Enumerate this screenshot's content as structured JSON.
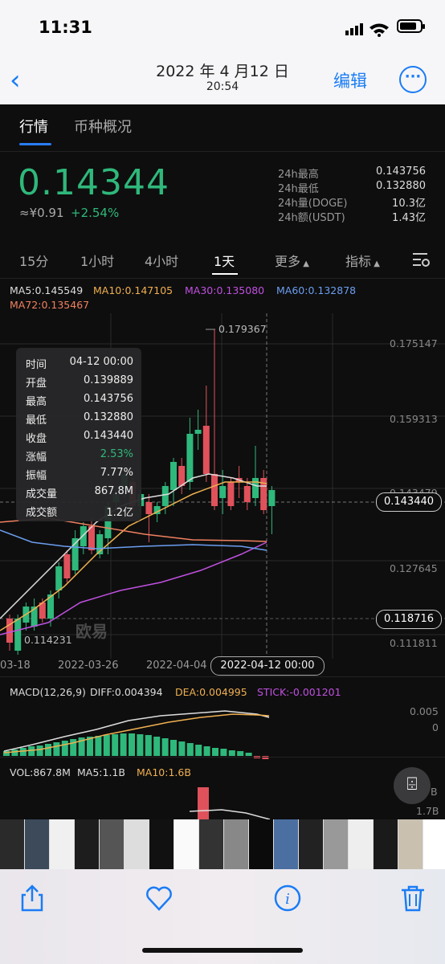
{
  "status": {
    "time": "11:31"
  },
  "header": {
    "back_icon": "chevron-left-icon",
    "date": "2022 年 4 月12 日",
    "time": "20:54",
    "edit_label": "编辑",
    "more_icon": "ellipsis-circle-icon"
  },
  "tabs": {
    "market": "行情",
    "overview": "币种概况"
  },
  "ticker": {
    "price": "0.14344",
    "fiat": "≈¥0.91",
    "change": "+2.54%",
    "stats": [
      {
        "label": "24h最高",
        "value": "0.143756"
      },
      {
        "label": "24h最低",
        "value": "0.132880"
      },
      {
        "label": "24h量(DOGE)",
        "value": "10.3亿"
      },
      {
        "label": "24h额(USDT)",
        "value": "1.43亿"
      }
    ]
  },
  "timeframes": {
    "m15": "15分",
    "h1": "1小时",
    "h4": "4小时",
    "d1": "1天",
    "more": "更多",
    "indicators": "指标"
  },
  "ma": {
    "ma5": "MA5:0.145549",
    "ma10": "MA10:0.147105",
    "ma30": "MA30:0.135080",
    "ma60": "MA60:0.132878",
    "ma72": "MA72:0.135467"
  },
  "tooltip": [
    {
      "label": "时间",
      "value": "04-12 00:00"
    },
    {
      "label": "开盘",
      "value": "0.139889"
    },
    {
      "label": "最高",
      "value": "0.143756"
    },
    {
      "label": "最低",
      "value": "0.132880"
    },
    {
      "label": "收盘",
      "value": "0.143440"
    },
    {
      "label": "涨幅",
      "value": "2.53%"
    },
    {
      "label": "振幅",
      "value": "7.77%"
    },
    {
      "label": "成交量",
      "value": "867.8M"
    },
    {
      "label": "成交额",
      "value": "1.2亿"
    }
  ],
  "chart": {
    "y_labels": [
      "0.175147",
      "0.159313",
      "0.143479",
      "0.127645",
      "0.111811"
    ],
    "high_label": "0.179367",
    "low_label": "0.114231",
    "price_tag": "0.143440",
    "low_tag": "0.118716",
    "x_labels": [
      "03-18",
      "2022-03-26",
      "2022-04-04"
    ],
    "selected_date": "2022-04-12 00:00",
    "watermark": "欧易",
    "up_color": "#2fb87b",
    "down_color": "#e0525b"
  },
  "macd": {
    "title": "MACD(12,26,9)",
    "diff": "DIFF:0.004394",
    "dea": "DEA:0.004995",
    "stick": "STICK:-0.001201",
    "y_top": "0.005",
    "y_zero": "0"
  },
  "vol": {
    "title": "VOL:867.8M",
    "ma5": "MA5:1.1B",
    "ma10": "MA10:1.6B",
    "y_top": "1.7B",
    "y_cut": "B"
  },
  "toolbar": {
    "share_icon": "share-icon",
    "favorite_icon": "heart-icon",
    "info_icon": "info-icon",
    "delete_icon": "trash-icon"
  }
}
